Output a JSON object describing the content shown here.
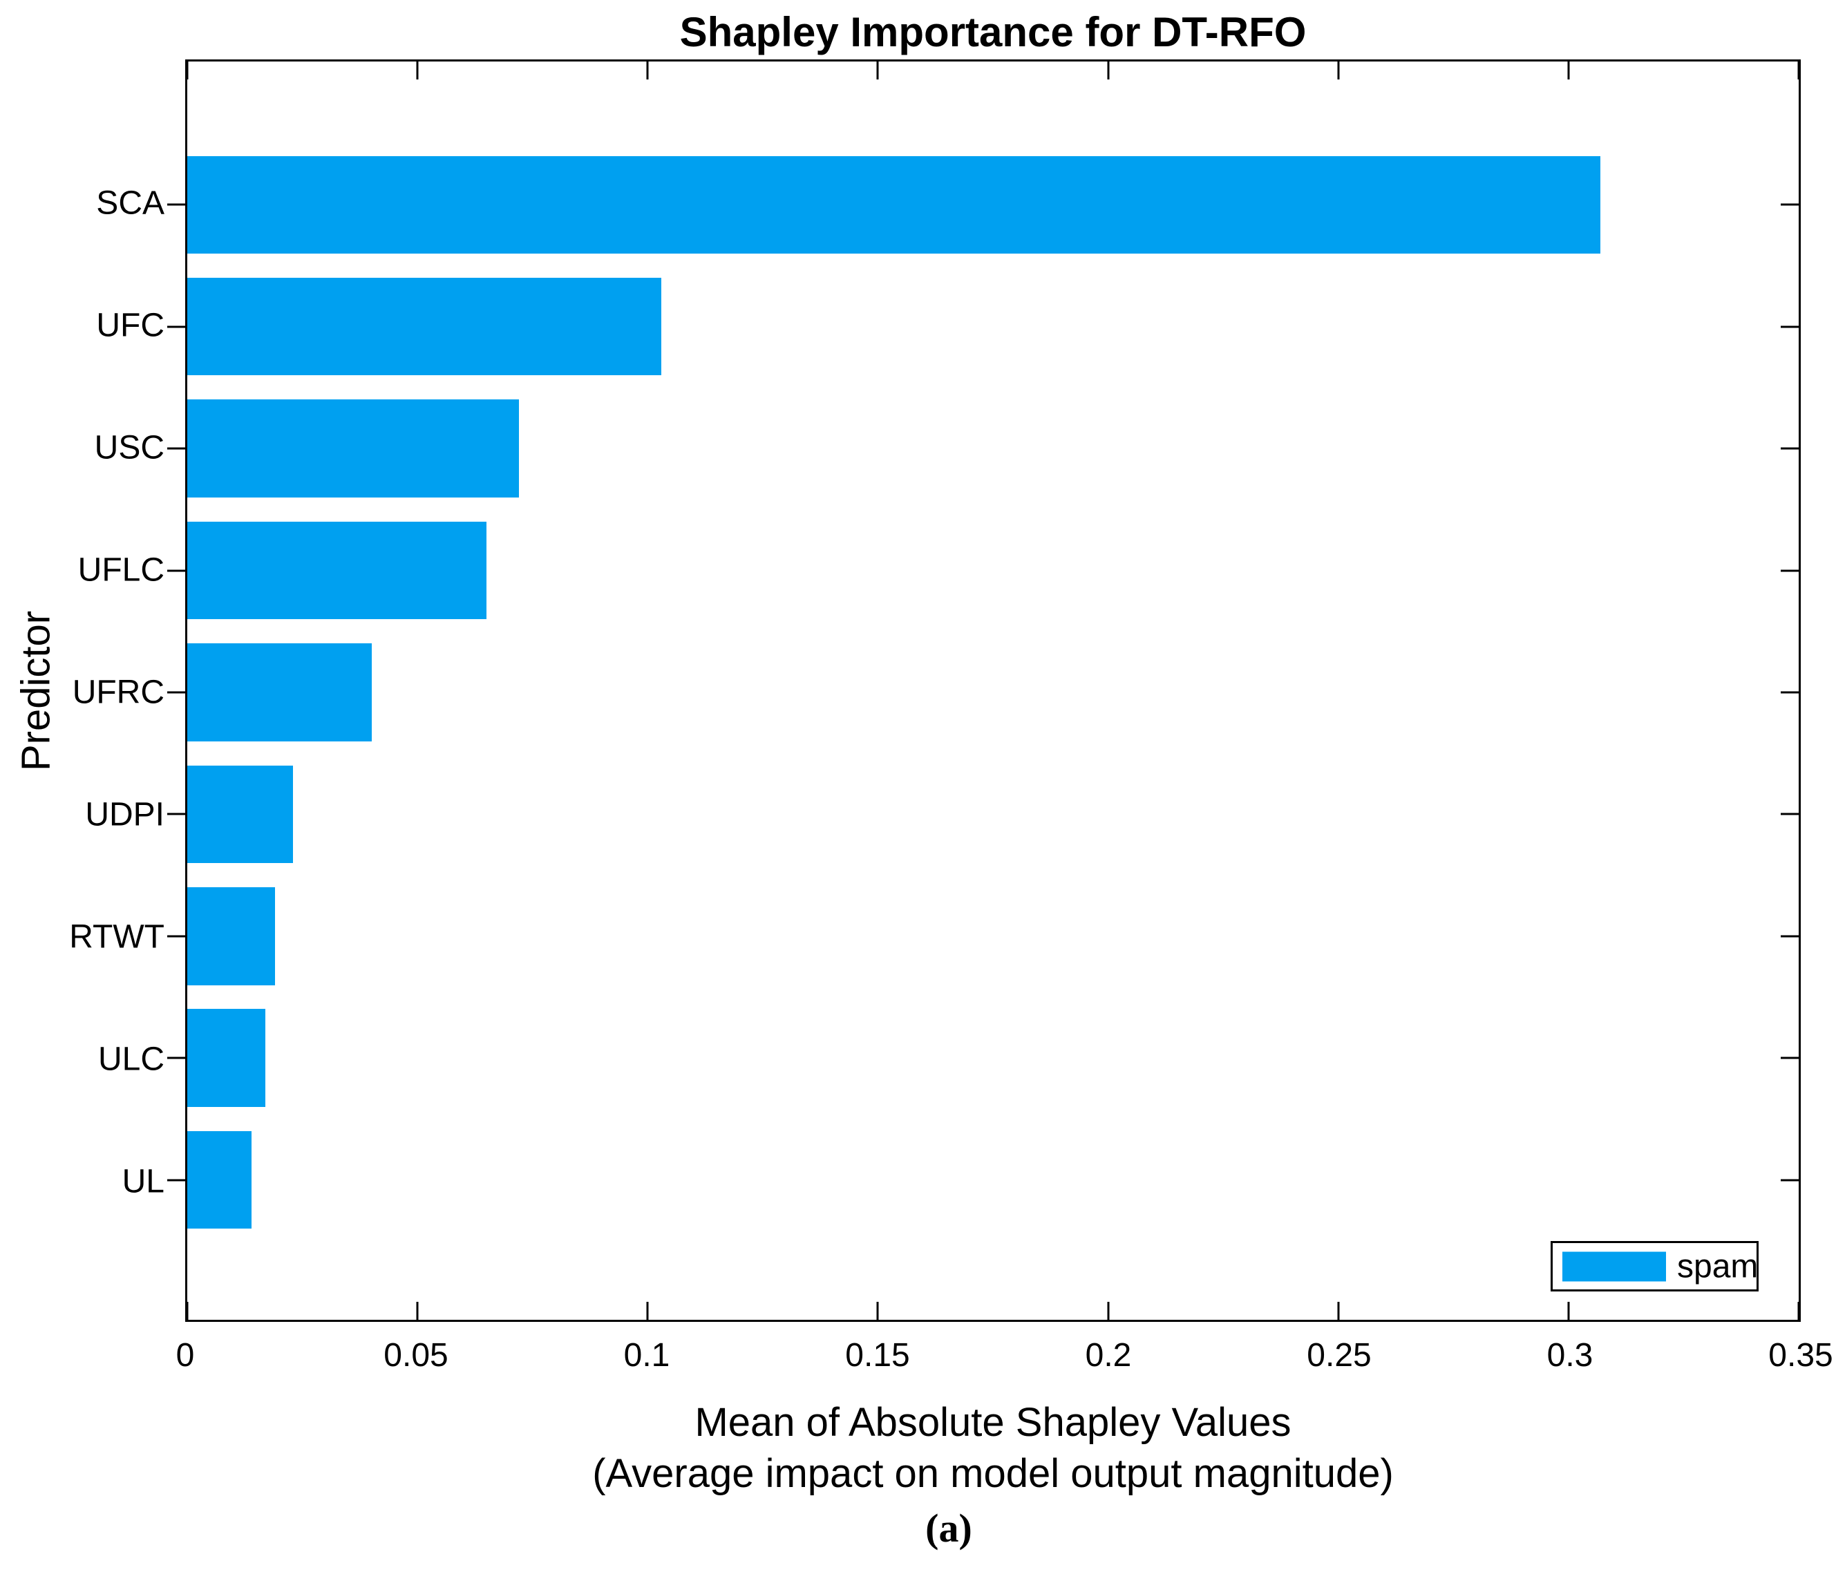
{
  "title": "Shapley Importance for DT-RFO",
  "caption": "(a)",
  "legend": {
    "label": "spam"
  },
  "colors": {
    "bar": "#00A0F0",
    "axis": "#000000",
    "background": "#FFFFFF"
  },
  "axis": {
    "xlabel_line1": "Mean of Absolute Shapley Values",
    "xlabel_line2": "(Average impact on model output magnitude)",
    "ylabel": "Predictor"
  },
  "chart_data": {
    "type": "bar",
    "orientation": "horizontal",
    "title": "Shapley Importance for DT-RFO",
    "categories": [
      "SCA",
      "UFC",
      "USC",
      "UFLC",
      "UFRC",
      "UDPI",
      "RTWT",
      "ULC",
      "UL"
    ],
    "series": [
      {
        "name": "spam",
        "values": [
          0.307,
          0.103,
          0.072,
          0.065,
          0.04,
          0.023,
          0.019,
          0.017,
          0.014
        ]
      }
    ],
    "xlabel": "Mean of Absolute Shapley Values (Average impact on model output magnitude)",
    "ylabel": "Predictor",
    "xlim": [
      0,
      0.35
    ],
    "xtick_labels": [
      "0",
      "0.05",
      "0.1",
      "0.15",
      "0.2",
      "0.25",
      "0.3",
      "0.35"
    ],
    "grid": false,
    "legend_position": "bottom-right",
    "bar_color": "#00A0F0"
  }
}
